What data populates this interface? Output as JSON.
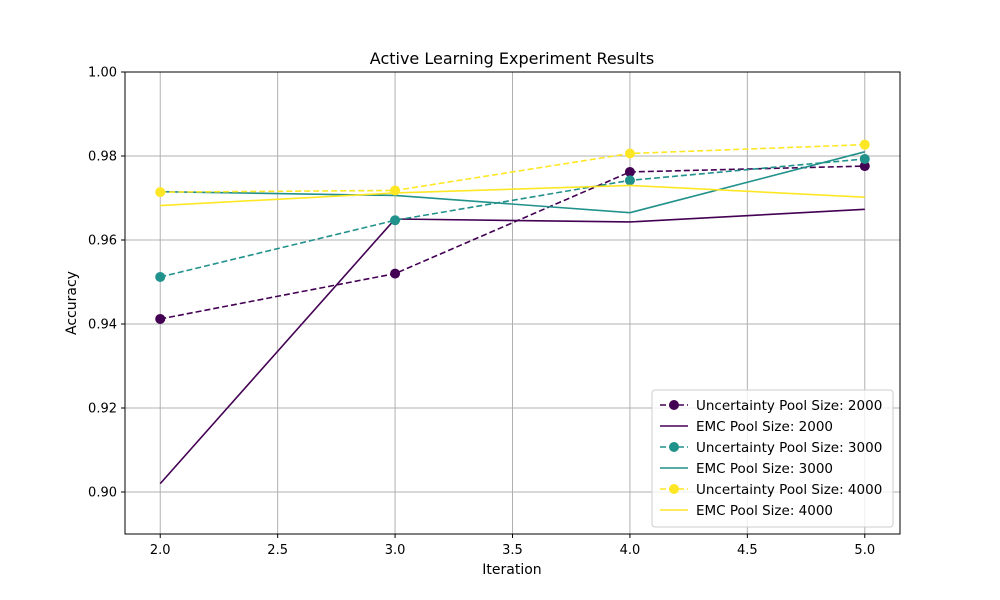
{
  "chart_data": {
    "type": "line",
    "title": "Active Learning Experiment Results",
    "xlabel": "Iteration",
    "ylabel": "Accuracy",
    "xlim": [
      1.85,
      5.15
    ],
    "ylim": [
      0.89,
      1.0
    ],
    "x": [
      2.0,
      3.0,
      4.0,
      5.0
    ],
    "xticks": [
      "2.0",
      "2.5",
      "3.0",
      "3.5",
      "4.0",
      "4.5",
      "5.0"
    ],
    "yticks": [
      "0.90",
      "0.92",
      "0.94",
      "0.96",
      "0.98",
      "1.00"
    ],
    "grid": true,
    "legend_position": "lower right",
    "series": [
      {
        "name": "Uncertainty Pool Size: 2000",
        "color": "#440154",
        "style": "dashed",
        "marker": "circle",
        "values": [
          0.9412,
          0.952,
          0.9762,
          0.9776
        ]
      },
      {
        "name": "EMC Pool Size: 2000",
        "color": "#440154",
        "style": "solid",
        "marker": "none",
        "values": [
          0.902,
          0.965,
          0.9643,
          0.9673
        ]
      },
      {
        "name": "Uncertainty Pool Size: 3000",
        "color": "#21918c",
        "style": "dashed",
        "marker": "circle",
        "values": [
          0.9512,
          0.9647,
          0.9742,
          0.9793
        ]
      },
      {
        "name": "EMC Pool Size: 3000",
        "color": "#21918c",
        "style": "solid",
        "marker": "none",
        "values": [
          0.9715,
          0.9706,
          0.9665,
          0.981
        ]
      },
      {
        "name": "Uncertainty Pool Size: 4000",
        "color": "#fde725",
        "style": "dashed",
        "marker": "circle",
        "values": [
          0.9714,
          0.9718,
          0.9806,
          0.9827
        ]
      },
      {
        "name": "EMC Pool Size: 4000",
        "color": "#fde725",
        "style": "solid",
        "marker": "none",
        "values": [
          0.9682,
          0.9712,
          0.973,
          0.9702
        ]
      }
    ]
  }
}
